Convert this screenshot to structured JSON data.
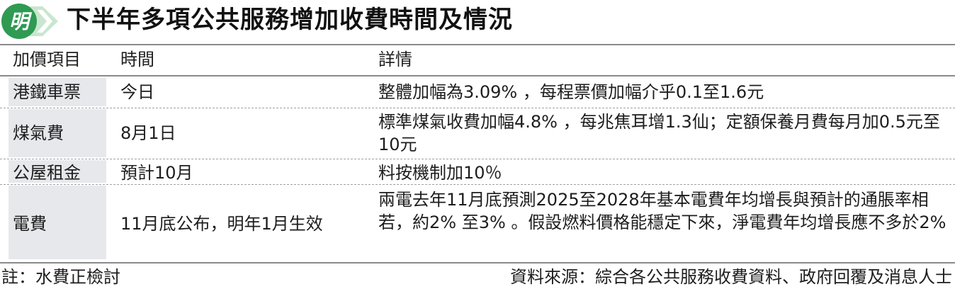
{
  "header": {
    "logo_text": "明",
    "title": "下半年多項公共服務增加收費時間及情況"
  },
  "colors": {
    "logo_green": "#2e9a52",
    "logo_light": "#c9e6cf",
    "shade": "#e7e8ec"
  },
  "table": {
    "headers": [
      "加價項目",
      "時間",
      "詳情"
    ],
    "rows": [
      {
        "item": "港鐵車票",
        "time": "今日",
        "detail": "整體加幅為3.09% ，每程票價加幅介乎0.1至1.6元"
      },
      {
        "item": "煤氣費",
        "time": "8月1日",
        "detail": "標準煤氣收費加幅4.8% ，每兆焦耳增1.3仙；定額保養月費每月加0.5元至10元"
      },
      {
        "item": "公屋租金",
        "time": "預計10月",
        "detail": "料按機制加10％"
      },
      {
        "item": "電費",
        "time": "11月底公布，明年1月生效",
        "detail": "兩電去年11月底預測2025至2028年基本電費年均增長與預計的通脹率相若，約2% 至3% 。假設燃料價格能穩定下來，淨電費年均增長應不多於2%"
      }
    ]
  },
  "footer": {
    "note": "註：水費正檢討",
    "source": "資料來源：綜合各公共服務收費資料、政府回覆及消息人士"
  }
}
